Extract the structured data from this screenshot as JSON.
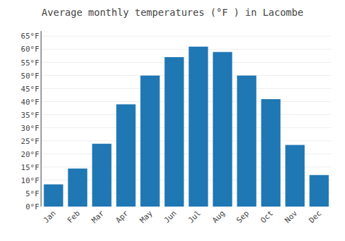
{
  "chart_data": {
    "type": "bar",
    "title": "Average monthly temperatures (°F ) in Lacombe",
    "categories": [
      "Jan",
      "Feb",
      "Mar",
      "Apr",
      "May",
      "Jun",
      "Jul",
      "Aug",
      "Sep",
      "Oct",
      "Nov",
      "Dec"
    ],
    "values": [
      8.5,
      14.5,
      24.0,
      39.0,
      50.0,
      57.0,
      61.0,
      59.0,
      50.0,
      41.0,
      23.5,
      12.0
    ],
    "ylim": [
      0,
      67
    ],
    "yticks": [
      {
        "value": 0,
        "label": "0°F"
      },
      {
        "value": 5,
        "label": "5°F"
      },
      {
        "value": 10,
        "label": "10°F"
      },
      {
        "value": 15,
        "label": "15°F"
      },
      {
        "value": 20,
        "label": "20°F"
      },
      {
        "value": 25,
        "label": "25°F"
      },
      {
        "value": 30,
        "label": "30°F"
      },
      {
        "value": 35,
        "label": "35°F"
      },
      {
        "value": 40,
        "label": "40°F"
      },
      {
        "value": 45,
        "label": "45°F"
      },
      {
        "value": 50,
        "label": "50°F"
      },
      {
        "value": 55,
        "label": "55°F"
      },
      {
        "value": 60,
        "label": "60°F"
      },
      {
        "value": 65,
        "label": "65°F"
      }
    ],
    "grid": true
  }
}
